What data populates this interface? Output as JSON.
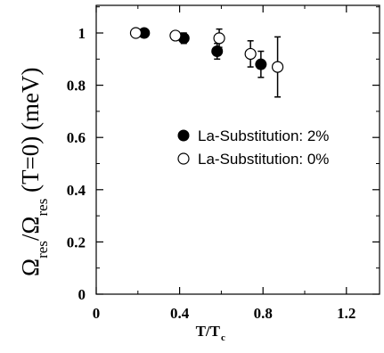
{
  "chart_data": {
    "type": "scatter",
    "title": "",
    "xlabel": "T/T",
    "xlabel_sub": "c",
    "ylabel_parts": {
      "omega1": "Ω",
      "sub1": "res",
      "slash": "/",
      "omega2": "Ω",
      "sub2": "res",
      "rest": " (T=0) (meV)"
    },
    "xlim": [
      0,
      1.4
    ],
    "ylim": [
      0,
      1.1
    ],
    "x_ticks": [
      0,
      0.4,
      0.8,
      1.2
    ],
    "x_tick_labels": [
      "0",
      "0.4",
      "0.8",
      "1.2"
    ],
    "y_ticks": [
      0,
      0.2,
      0.4,
      0.6,
      0.8,
      1
    ],
    "y_tick_labels": [
      "0",
      "0.2",
      "0.4",
      "0.6",
      "0.8",
      "1"
    ],
    "grid": false,
    "legend_position": "center-right",
    "series": [
      {
        "name": "La-Substitution: 2%",
        "marker": "filled-circle",
        "color": "#000000",
        "points": [
          {
            "x": 0.23,
            "y": 1.0,
            "err": 0
          },
          {
            "x": 0.42,
            "y": 0.98,
            "err": 0.02
          },
          {
            "x": 0.58,
            "y": 0.93,
            "err": 0.03
          },
          {
            "x": 0.79,
            "y": 0.88,
            "err": 0.05
          }
        ]
      },
      {
        "name": "La-Substitution: 0%",
        "marker": "open-circle",
        "color": "#000000",
        "points": [
          {
            "x": 0.19,
            "y": 1.0,
            "err": 0.015
          },
          {
            "x": 0.38,
            "y": 0.99,
            "err": 0.015
          },
          {
            "x": 0.59,
            "y": 0.98,
            "err": 0.035
          },
          {
            "x": 0.74,
            "y": 0.92,
            "err": 0.05
          },
          {
            "x": 0.87,
            "y": 0.87,
            "err": 0.115
          }
        ]
      }
    ]
  }
}
